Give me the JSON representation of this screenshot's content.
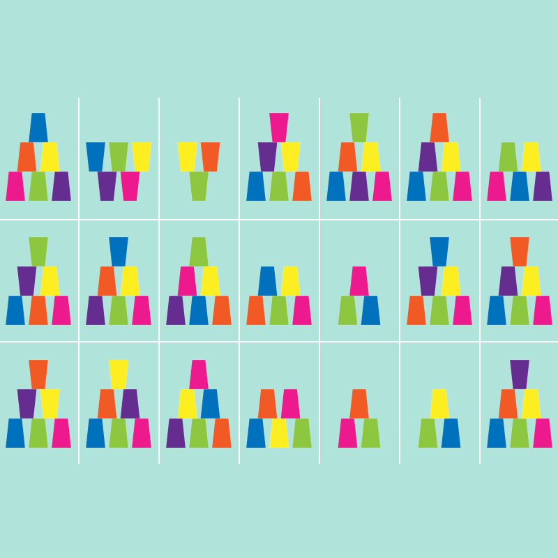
{
  "background": "#b0e3d9",
  "grid_line_color": "#ffffff",
  "colors": {
    "blue": "#0071bc",
    "orange": "#f15a24",
    "yellow": "#fcee21",
    "pink": "#ec1a8c",
    "green": "#8dc63f",
    "purple": "#662d91"
  },
  "orientation_legend": {
    "u": "opening-up",
    "d": "opening-down"
  },
  "rows": [
    [
      [
        [
          "pink-d",
          "green-d",
          "purple-d"
        ],
        [
          "orange-d",
          "yellow-d"
        ],
        [
          "blue-d"
        ]
      ],
      [
        [
          "purple-u",
          "pink-u"
        ],
        [
          "blue-u",
          "green-u",
          "yellow-u"
        ]
      ],
      [
        [
          "green-u"
        ],
        [
          "yellow-u",
          "orange-u"
        ]
      ],
      [
        [
          "blue-d",
          "green-d",
          "orange-d"
        ],
        [
          "purple-u",
          "yellow-u"
        ],
        [
          "pink-u"
        ]
      ],
      [
        [
          "blue-d",
          "purple-d",
          "pink-d"
        ],
        [
          "orange-d",
          "yellow-d"
        ],
        [
          "green-u"
        ]
      ],
      [
        [
          "blue-d",
          "green-d",
          "pink-d"
        ],
        [
          "purple-d",
          "yellow-d"
        ],
        [
          "orange-d"
        ]
      ],
      [
        [
          "pink-d",
          "blue-d",
          "purple-d"
        ],
        [
          "green-d",
          "yellow-d"
        ]
      ]
    ],
    [
      [
        [
          "blue-d",
          "orange-d",
          "pink-d"
        ],
        [
          "purple-u",
          "yellow-d"
        ],
        [
          "green-u"
        ]
      ],
      [
        [
          "purple-d",
          "green-d",
          "pink-d"
        ],
        [
          "orange-d",
          "yellow-d"
        ],
        [
          "blue-u"
        ]
      ],
      [
        [
          "purple-d",
          "blue-d",
          "orange-d"
        ],
        [
          "pink-d",
          "yellow-d"
        ],
        [
          "green-d"
        ]
      ],
      [
        [
          "orange-d",
          "green-d",
          "pink-d"
        ],
        [
          "blue-d",
          "yellow-d"
        ]
      ],
      [
        [
          "green-d",
          "blue-d"
        ],
        [
          "pink-d"
        ]
      ],
      [
        [
          "orange-d",
          "green-d",
          "pink-d"
        ],
        [
          "purple-u",
          "yellow-d"
        ],
        [
          "blue-u"
        ]
      ],
      [
        [
          "blue-d",
          "green-d",
          "pink-d"
        ],
        [
          "purple-d",
          "yellow-d"
        ],
        [
          "orange-u"
        ]
      ]
    ],
    [
      [
        [
          "blue-d",
          "green-d",
          "pink-d"
        ],
        [
          "purple-u",
          "yellow-u"
        ],
        [
          "orange-u"
        ]
      ],
      [
        [
          "blue-d",
          "green-d",
          "pink-d"
        ],
        [
          "orange-d",
          "purple-d"
        ],
        [
          "yellow-u"
        ]
      ],
      [
        [
          "purple-d",
          "green-d",
          "orange-d"
        ],
        [
          "yellow-d",
          "blue-d"
        ],
        [
          "pink-d"
        ]
      ],
      [
        [
          "blue-d",
          "yellow-d",
          "green-d"
        ],
        [
          "orange-d",
          "pink-d"
        ]
      ],
      [
        [
          "pink-d",
          "green-d"
        ],
        [
          "orange-d"
        ]
      ],
      [
        [
          "green-d",
          "blue-d"
        ],
        [
          "yellow-d"
        ]
      ],
      [
        [
          "blue-d",
          "green-d",
          "pink-d"
        ],
        [
          "orange-d",
          "yellow-d"
        ],
        [
          "purple-u"
        ]
      ]
    ]
  ]
}
